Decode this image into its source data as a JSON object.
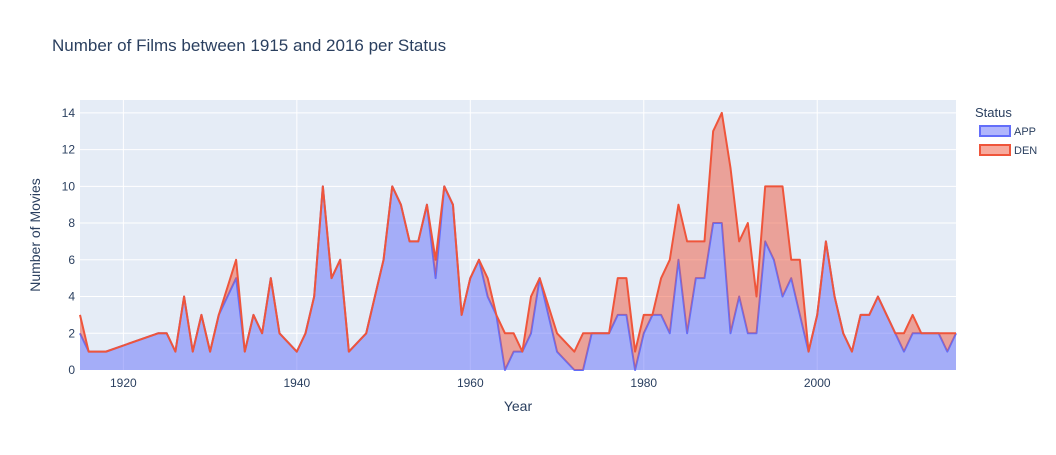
{
  "chart_data": {
    "type": "area",
    "title": "Number of Films between 1915 and 2016 per Status",
    "xlabel": "Year",
    "ylabel": "Number of Movies",
    "xlim": [
      1915,
      2016
    ],
    "ylim": [
      0,
      14.7
    ],
    "x_ticks": [
      1920,
      1940,
      1960,
      1980,
      2000
    ],
    "y_ticks": [
      0,
      2,
      4,
      6,
      8,
      10,
      12,
      14
    ],
    "grid": true,
    "stacked": true,
    "legend": {
      "title": "Status",
      "position": "right"
    },
    "x": [
      1915,
      1916,
      1918,
      1924,
      1925,
      1926,
      1927,
      1928,
      1929,
      1930,
      1931,
      1933,
      1934,
      1935,
      1936,
      1937,
      1938,
      1940,
      1941,
      1942,
      1943,
      1944,
      1945,
      1946,
      1948,
      1950,
      1951,
      1952,
      1953,
      1954,
      1955,
      1956,
      1957,
      1958,
      1959,
      1960,
      1961,
      1962,
      1963,
      1964,
      1965,
      1966,
      1967,
      1968,
      1970,
      1972,
      1973,
      1974,
      1975,
      1976,
      1977,
      1978,
      1979,
      1980,
      1981,
      1982,
      1983,
      1984,
      1985,
      1986,
      1987,
      1988,
      1989,
      1990,
      1991,
      1992,
      1993,
      1994,
      1995,
      1996,
      1997,
      1998,
      1999,
      2000,
      2001,
      2002,
      2003,
      2004,
      2005,
      2006,
      2007,
      2008,
      2009,
      2010,
      2011,
      2012,
      2013,
      2014,
      2015,
      2016
    ],
    "series": [
      {
        "name": "APP",
        "color": "#636efa",
        "values": [
          2,
          1,
          1,
          2,
          2,
          1,
          4,
          1,
          3,
          1,
          3,
          5,
          1,
          3,
          2,
          5,
          2,
          1,
          2,
          4,
          10,
          5,
          6,
          1,
          2,
          6,
          10,
          9,
          7,
          7,
          9,
          5,
          10,
          9,
          3,
          5,
          6,
          4,
          3,
          0,
          1,
          1,
          2,
          5,
          1,
          0,
          0,
          2,
          2,
          2,
          3,
          3,
          0,
          2,
          3,
          3,
          2,
          6,
          2,
          5,
          5,
          8,
          8,
          2,
          4,
          2,
          2,
          7,
          6,
          4,
          5,
          3,
          1,
          3,
          7,
          4,
          2,
          1,
          3,
          3,
          4,
          3,
          2,
          1,
          2,
          2,
          2,
          2,
          1,
          2
        ]
      },
      {
        "name": "DEN",
        "color": "#ef553b",
        "values": [
          1,
          0,
          0,
          0,
          0,
          0,
          0,
          0,
          0,
          0,
          0,
          1,
          0,
          0,
          0,
          0,
          0,
          0,
          0,
          0,
          0,
          0,
          0,
          0,
          0,
          0,
          0,
          0,
          0,
          0,
          0,
          1,
          0,
          0,
          0,
          0,
          0,
          1,
          0,
          2,
          1,
          0,
          2,
          0,
          1,
          1,
          2,
          0,
          0,
          0,
          2,
          2,
          1,
          1,
          0,
          2,
          4,
          3,
          5,
          2,
          2,
          5,
          6,
          9,
          3,
          6,
          2,
          3,
          4,
          6,
          1,
          3,
          0,
          0,
          0,
          0,
          0,
          0,
          0,
          0,
          0,
          0,
          0,
          1,
          1,
          0,
          0,
          0,
          1,
          0
        ]
      }
    ]
  }
}
